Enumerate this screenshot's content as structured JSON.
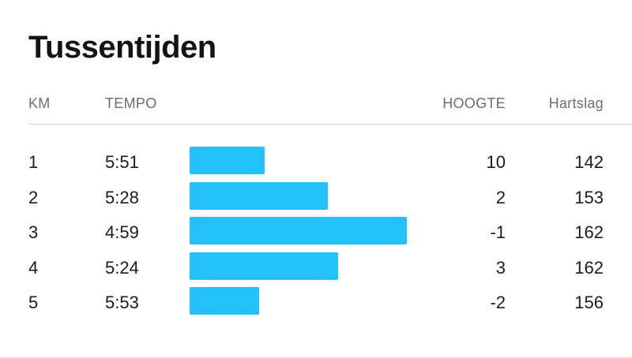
{
  "title": "Tussentijden",
  "headers": {
    "km": "KM",
    "tempo": "TEMPO",
    "hoogte": "HOOGTE",
    "hartslag": "Hartslag"
  },
  "bar_color": "#22C1FA",
  "rows": [
    {
      "km": "1",
      "tempo": "5:51",
      "hoogte": "10",
      "hartslag": "142",
      "pace_seconds": 351
    },
    {
      "km": "2",
      "tempo": "5:28",
      "hoogte": "2",
      "hartslag": "153",
      "pace_seconds": 328
    },
    {
      "km": "3",
      "tempo": "4:59",
      "hoogte": "-1",
      "hartslag": "162",
      "pace_seconds": 299
    },
    {
      "km": "4",
      "tempo": "5:24",
      "hoogte": "3",
      "hartslag": "162",
      "pace_seconds": 324
    },
    {
      "km": "5",
      "tempo": "5:53",
      "hoogte": "-2",
      "hartslag": "156",
      "pace_seconds": 353
    }
  ]
}
